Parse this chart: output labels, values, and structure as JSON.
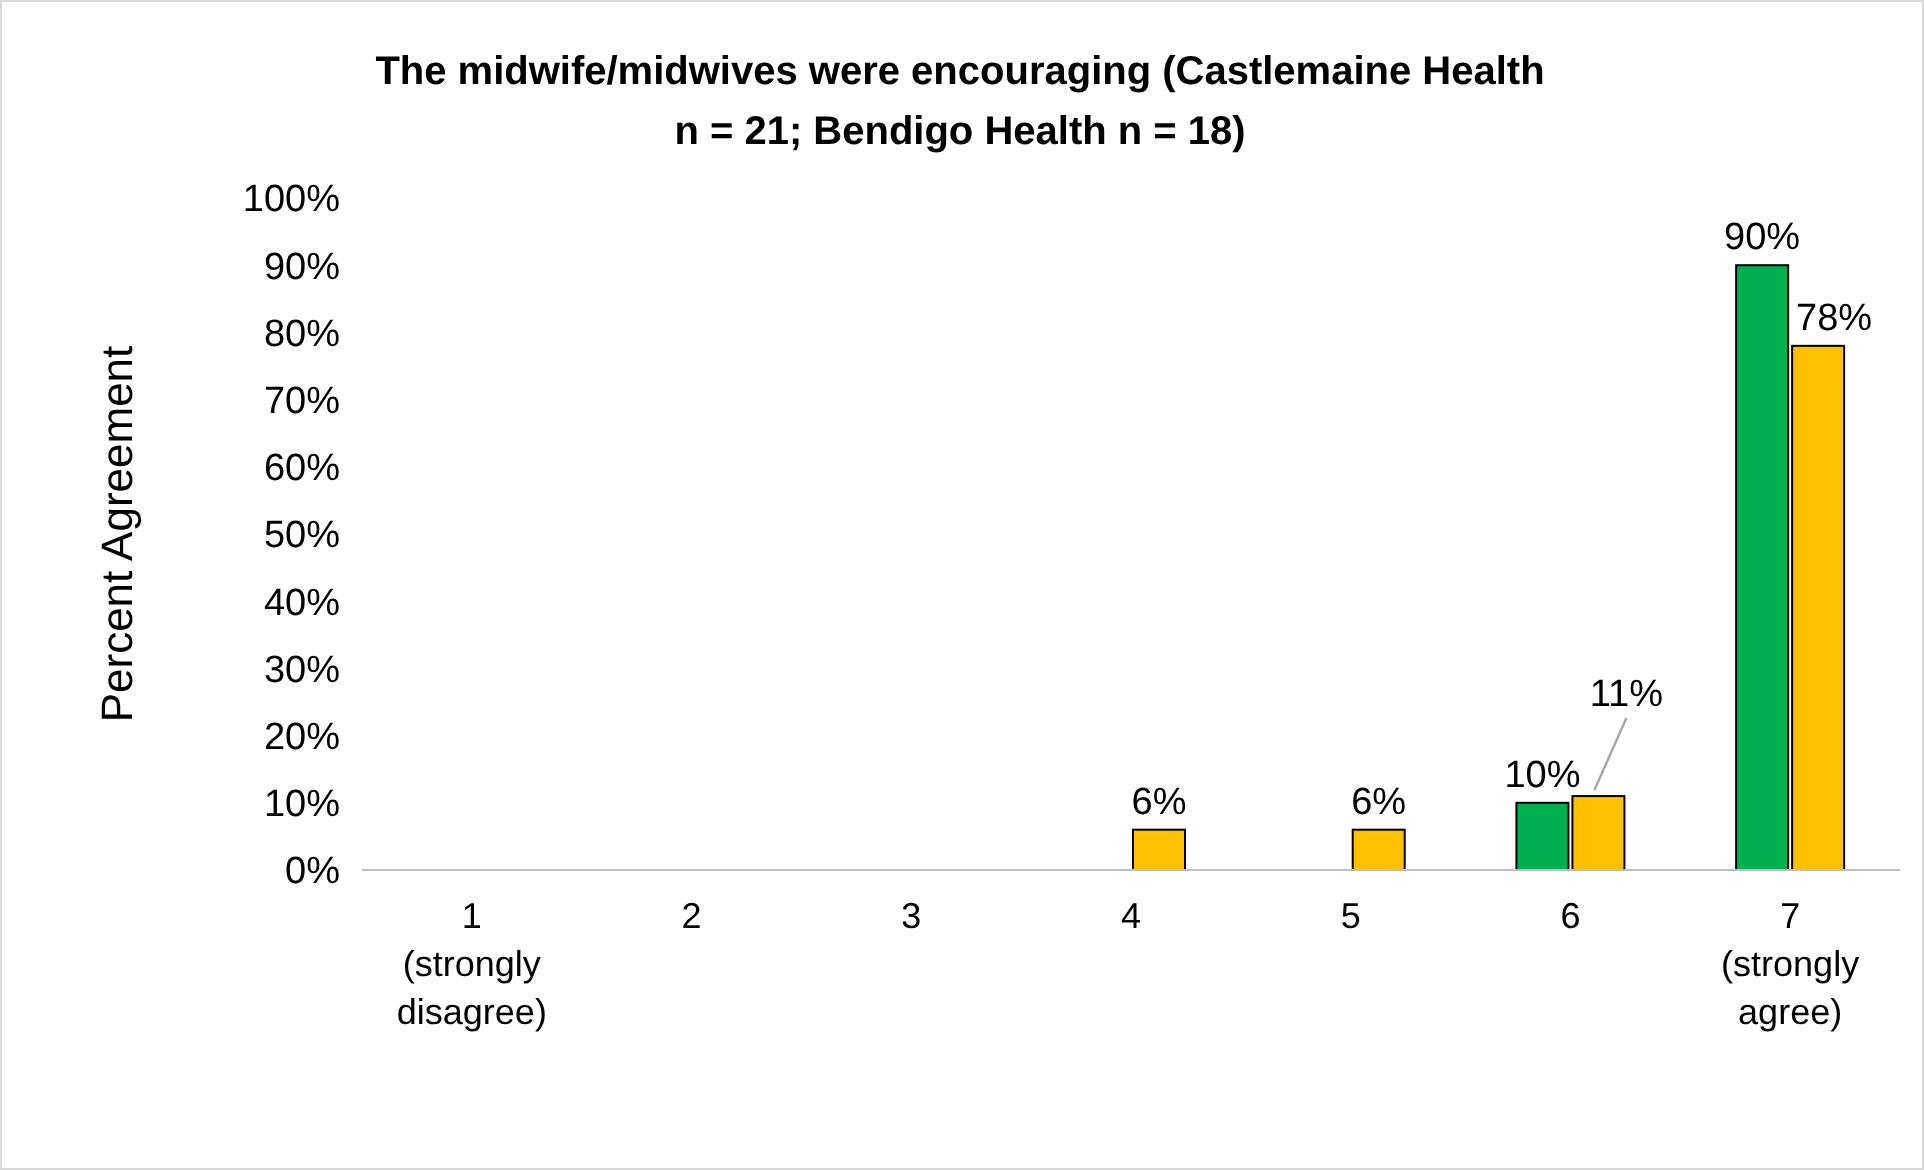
{
  "chart_data": {
    "type": "bar",
    "title": "The midwife/midwives were encouraging (Castlemaine Health\nn = 21; Bendigo Health n = 18)",
    "ylabel": "Percent Agreement",
    "categories": [
      "1\n(strongly\ndisagree)",
      "2",
      "3",
      "4",
      "5",
      "6",
      "7\n(strongly\nagree)"
    ],
    "series": [
      {
        "color": "#00b050",
        "values": [
          null,
          null,
          null,
          null,
          null,
          10,
          90
        ],
        "value_labels": [
          null,
          null,
          null,
          null,
          null,
          "10%",
          "90%"
        ]
      },
      {
        "color": "#ffc000",
        "values": [
          null,
          null,
          null,
          6,
          6,
          11,
          78
        ],
        "value_labels": [
          null,
          null,
          null,
          "6%",
          "6%",
          "11%",
          "78%"
        ]
      }
    ],
    "ylim": [
      0,
      100
    ],
    "yticks": [
      {
        "value": 0,
        "label": "0%"
      },
      {
        "value": 10,
        "label": "10%"
      },
      {
        "value": 20,
        "label": "20%"
      },
      {
        "value": 30,
        "label": "30%"
      },
      {
        "value": 40,
        "label": "40%"
      },
      {
        "value": 50,
        "label": "50%"
      },
      {
        "value": 60,
        "label": "60%"
      },
      {
        "value": 70,
        "label": "70%"
      },
      {
        "value": 80,
        "label": "80%"
      },
      {
        "value": 90,
        "label": "90%"
      },
      {
        "value": 100,
        "label": "100%"
      }
    ],
    "grid": false
  }
}
